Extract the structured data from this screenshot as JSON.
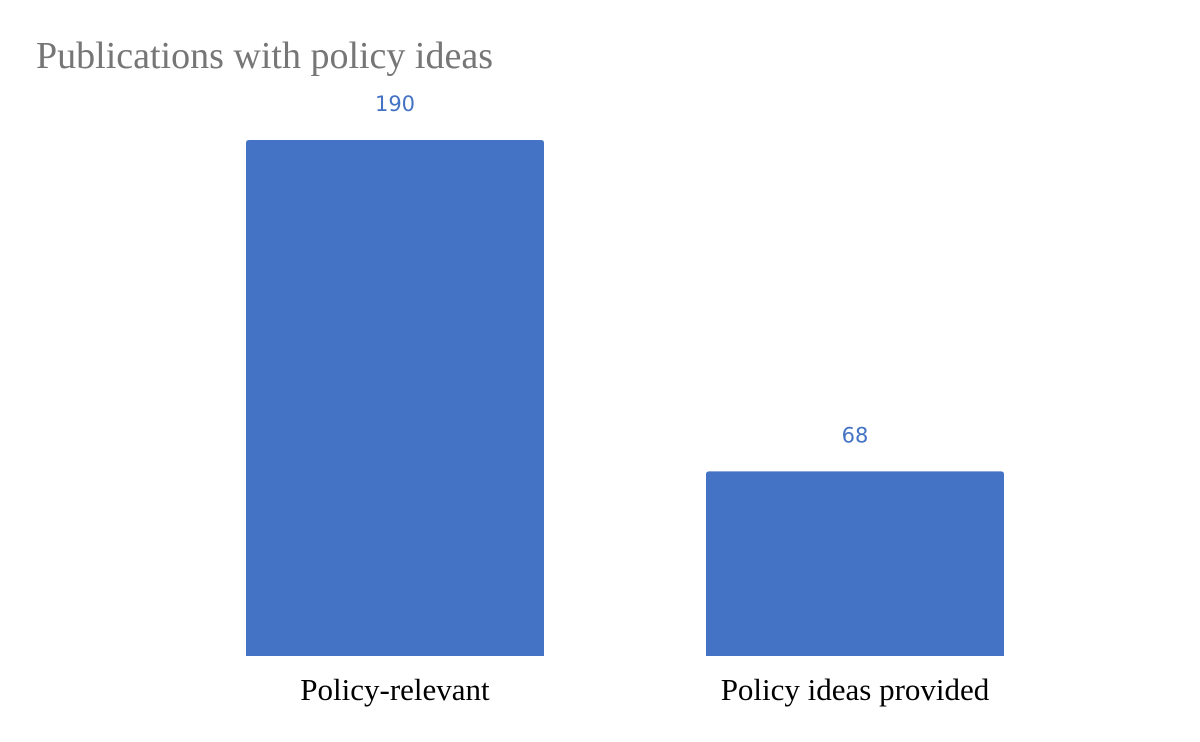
{
  "chart_data": {
    "type": "bar",
    "title": "Publications with policy ideas",
    "categories": [
      "Policy-relevant",
      "Policy ideas provided"
    ],
    "values": [
      190,
      68
    ],
    "data_labels": [
      "190",
      "68"
    ],
    "xlabel": "",
    "ylabel": "",
    "ylim": [
      0,
      190
    ],
    "grid": false,
    "legend": "none",
    "colors": {
      "bar": "#4472c4",
      "data_label": "#4472c4",
      "title": "#767676",
      "category_label": "#000000"
    }
  }
}
